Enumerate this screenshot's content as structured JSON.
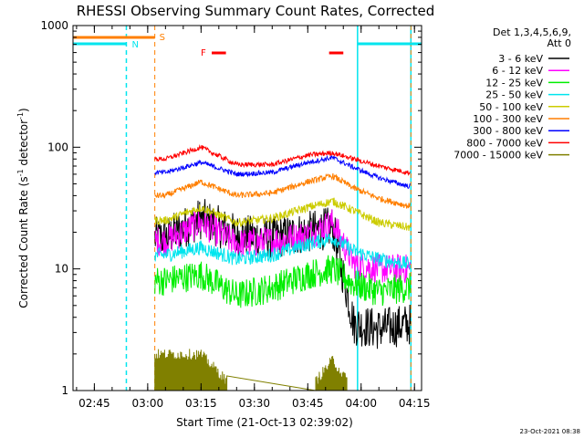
{
  "colors": {
    "background": "#ffffff",
    "axes": "#000000",
    "night": "#00e5ee",
    "saa": "#ff7f00",
    "flare": "#ff0000"
  },
  "chart_data": {
    "type": "line",
    "title": "RHESSI Observing Summary Count Rates, Corrected",
    "xlabel": "Start Time (21-Oct-13 02:39:02)",
    "ylabel": "Corrected Count Rate (s⁻¹ detector⁻¹)",
    "ylabel_text": "Corrected Count Rate (s",
    "ylabel_sup1": "-1",
    "ylabel_mid": " detector",
    "ylabel_sup2": "-1",
    "ylabel_end": ")",
    "y_scale": "log",
    "xlim": [
      "02:39",
      "04:17"
    ],
    "ylim": [
      1,
      1000
    ],
    "x_ticks": [
      "02:45",
      "03:00",
      "03:15",
      "03:30",
      "03:45",
      "04:00",
      "04:15"
    ],
    "y_ticks": [
      "1",
      "10",
      "100",
      "1000"
    ],
    "legend": {
      "header": [
        "Det 1,3,4,5,6,9,",
        "Att 0"
      ],
      "placement": "right"
    },
    "markers": {
      "night_label": "N",
      "saa_label": "S",
      "flare_label": "F",
      "night_intervals": [
        [
          "02:39",
          "02:54"
        ],
        [
          "03:59",
          "04:17"
        ]
      ],
      "night_boundaries": [
        "02:54",
        "03:59",
        "04:14"
      ],
      "saa_intervals": [
        [
          "02:39",
          "03:02"
        ]
      ],
      "saa_boundaries": [
        "03:02",
        "04:14"
      ],
      "flare_intervals": [
        [
          "03:18",
          "03:22"
        ],
        [
          "03:51",
          "03:55"
        ]
      ]
    },
    "data_start": "03:02",
    "data_end": "04:14",
    "x_sample": [
      "03:05",
      "03:15",
      "03:25",
      "03:35",
      "03:45",
      "03:52",
      "03:58",
      "04:05",
      "04:13"
    ],
    "series": [
      {
        "name": "3 - 6 keV",
        "color": "#000000",
        "values": [
          18,
          26,
          19,
          18,
          20,
          22,
          3.5,
          3.2,
          3.5
        ]
      },
      {
        "name": "6 - 12 keV",
        "color": "#ff00ff",
        "values": [
          17,
          24,
          16,
          17,
          19,
          24,
          11,
          10,
          10
        ]
      },
      {
        "name": "12 - 25 keV",
        "color": "#00ee00",
        "values": [
          8,
          9,
          6,
          7,
          9,
          10,
          7.5,
          6.5,
          7
        ]
      },
      {
        "name": "25 - 50 keV",
        "color": "#00e5ee",
        "values": [
          13,
          15,
          12,
          13,
          16,
          18,
          14,
          12,
          11
        ]
      },
      {
        "name": "50 - 100 keV",
        "color": "#cccc00",
        "values": [
          25,
          32,
          24,
          26,
          32,
          36,
          30,
          24,
          22
        ]
      },
      {
        "name": "100 - 300 keV",
        "color": "#ff7f00",
        "values": [
          40,
          52,
          40,
          42,
          52,
          58,
          46,
          38,
          33
        ]
      },
      {
        "name": "300 - 800 keV",
        "color": "#0000ff",
        "values": [
          62,
          75,
          60,
          62,
          75,
          82,
          68,
          56,
          48
        ]
      },
      {
        "name": "800 - 7000 keV",
        "color": "#ff0000",
        "values": [
          80,
          100,
          72,
          72,
          86,
          90,
          80,
          70,
          62
        ]
      },
      {
        "name": "7000 - 15000 keV",
        "color": "#808000",
        "values": [
          2,
          2,
          1,
          1,
          1,
          1.8,
          1,
          1,
          1
        ]
      }
    ]
  },
  "footer": {
    "timestamp": "23-Oct-2021 08:38"
  }
}
